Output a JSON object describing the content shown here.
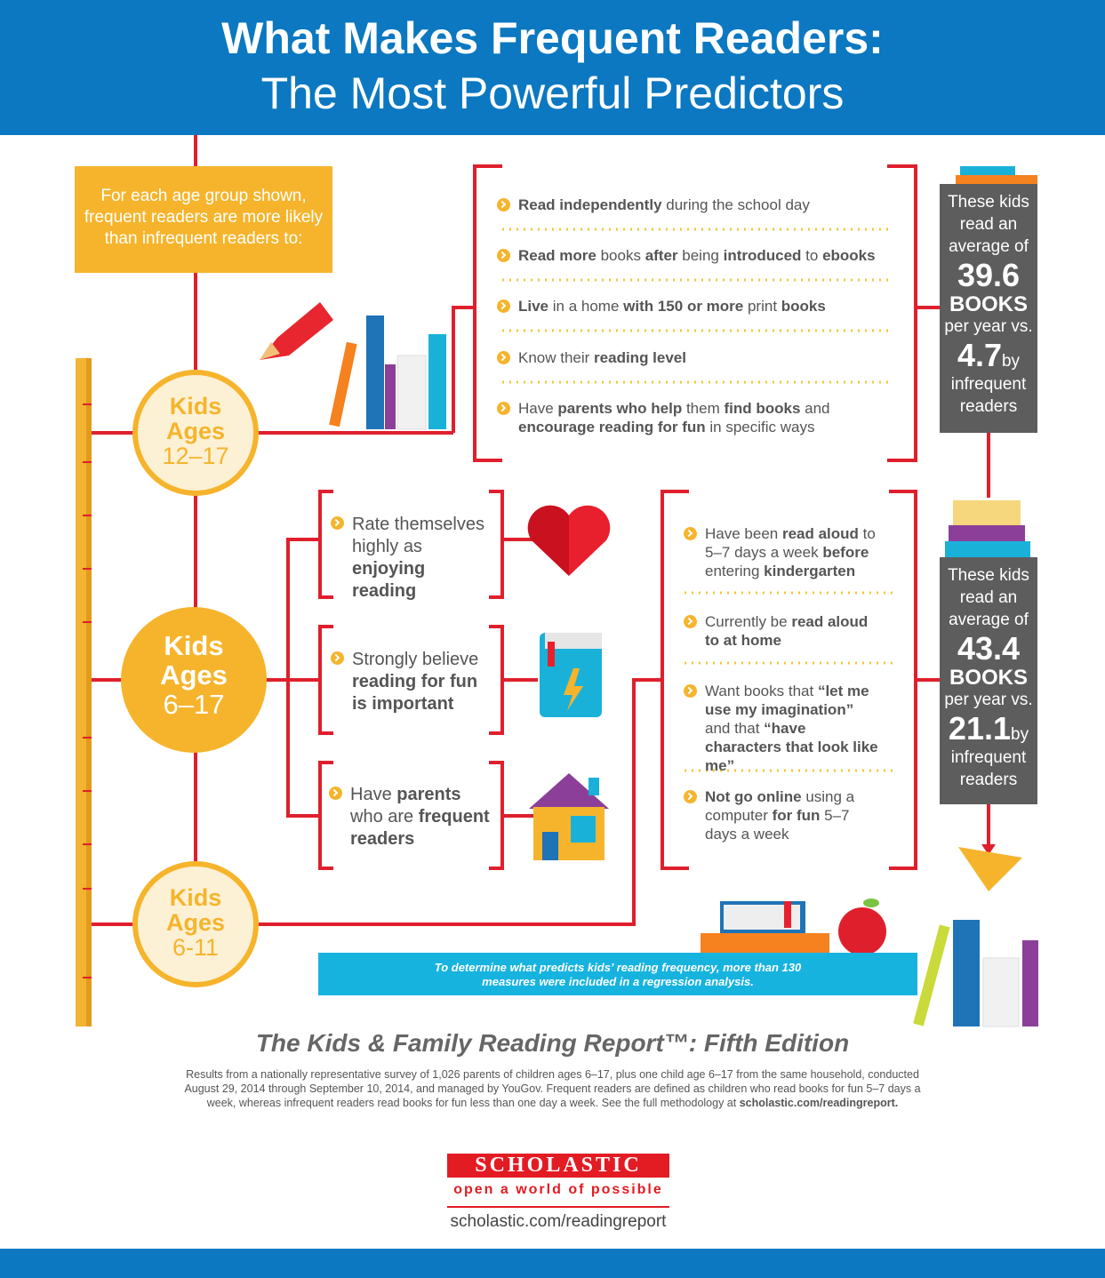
{
  "header": {
    "title": "What Makes Frequent Readers:",
    "subtitle": "The Most Powerful Predictors"
  },
  "intro": "For each age group shown, frequent readers are more likely than infrequent readers to:",
  "age_groups": [
    {
      "line1": "Kids",
      "line2": "Ages",
      "range": "12–17"
    },
    {
      "line1": "Kids",
      "line2": "Ages",
      "range": "6–17"
    },
    {
      "line1": "Kids",
      "line2": "Ages",
      "range": "6-11"
    }
  ],
  "predictors": [
    {
      "items": [
        [
          {
            "text": "Read independently",
            "bold": true
          },
          {
            "text": " during the  school day",
            "bold": false
          }
        ],
        [
          {
            "text": "Read more",
            "bold": true
          },
          {
            "text": " books ",
            "bold": false
          },
          {
            "text": "after",
            "bold": true
          },
          {
            "text": " being ",
            "bold": false
          },
          {
            "text": "introduced",
            "bold": true
          },
          {
            "text": " to ",
            "bold": false
          },
          {
            "text": "ebooks",
            "bold": true
          }
        ],
        [
          {
            "text": "Live",
            "bold": true
          },
          {
            "text": " in a home ",
            "bold": false
          },
          {
            "text": "with 150 or more",
            "bold": true
          },
          {
            "text": " print ",
            "bold": false
          },
          {
            "text": "books",
            "bold": true
          }
        ],
        [
          {
            "text": "Know their ",
            "bold": false
          },
          {
            "text": "reading level",
            "bold": true
          }
        ],
        [
          {
            "text": "Have ",
            "bold": false
          },
          {
            "text": "parents who help",
            "bold": true
          },
          {
            "text": " them ",
            "bold": false
          },
          {
            "text": "find books",
            "bold": true
          },
          {
            "text": " and ",
            "bold": false
          },
          {
            "text": "encourage reading for fun",
            "bold": true
          },
          {
            "text": " in specific ways",
            "bold": false
          }
        ]
      ]
    },
    {
      "items": [
        [
          {
            "text": "Rate themselves highly as ",
            "bold": false
          },
          {
            "text": "enjoying reading",
            "bold": true
          }
        ],
        [
          {
            "text": "Strongly believe ",
            "bold": false
          },
          {
            "text": "reading for fun is important",
            "bold": true
          }
        ],
        [
          {
            "text": "Have ",
            "bold": false
          },
          {
            "text": "parents",
            "bold": true
          },
          {
            "text": " who are ",
            "bold": false
          },
          {
            "text": "frequent readers",
            "bold": true
          }
        ]
      ]
    },
    {
      "items": [
        [
          {
            "text": "Have been ",
            "bold": false
          },
          {
            "text": "read aloud",
            "bold": true
          },
          {
            "text": " to 5–7 days a week ",
            "bold": false
          },
          {
            "text": "before",
            "bold": true
          },
          {
            "text": " entering ",
            "bold": false
          },
          {
            "text": "kindergarten",
            "bold": true
          }
        ],
        [
          {
            "text": "Currently be ",
            "bold": false
          },
          {
            "text": "read aloud to at home",
            "bold": true
          }
        ],
        [
          {
            "text": "Want books that ",
            "bold": false
          },
          {
            "text": "“let me use my imagination”",
            "bold": true
          },
          {
            "text": " and that ",
            "bold": false
          },
          {
            "text": "“have characters that look like me”",
            "bold": true
          }
        ],
        [
          {
            "text": "Not go online",
            "bold": true
          },
          {
            "text": " using a computer ",
            "bold": false
          },
          {
            "text": "for fun",
            "bold": true
          },
          {
            "text": " 5–7 days a week",
            "bold": false
          }
        ]
      ]
    }
  ],
  "stats": [
    {
      "lead": "These kids read an average of",
      "frequent": 39.6,
      "unit": "BOOKS",
      "compare": "per year vs.",
      "infrequent": 4.7,
      "by": "by",
      "tail": "infrequent readers"
    },
    {
      "lead": "These kids read an average of",
      "frequent": 43.4,
      "unit": "BOOKS",
      "compare": "per year vs.",
      "infrequent": 21.1,
      "by": "by",
      "tail": "infrequent readers"
    }
  ],
  "note": "To determine what predicts kids’ reading frequency, more than 130 measures were included in a regression analysis.",
  "report_title": "The Kids & Family Reading Report™: Fifth Edition",
  "methodology": [
    {
      "text": "Results from a nationally representative survey of 1,026 parents of children ages 6–17, plus one child age 6–17 from the same household, conducted August 29, 2014 through September 10, 2014, and managed by YouGov. Frequent readers are defined as children who read books for fun 5–7 days a week, whereas infrequent readers read books for fun less than one day a week. See the full methodology at ",
      "bold": false
    },
    {
      "text": "scholastic.com/readingreport.",
      "bold": true
    }
  ],
  "logo": "SCHOLASTIC",
  "tagline": "open a world of possible",
  "url": "scholastic.com/readingreport"
}
